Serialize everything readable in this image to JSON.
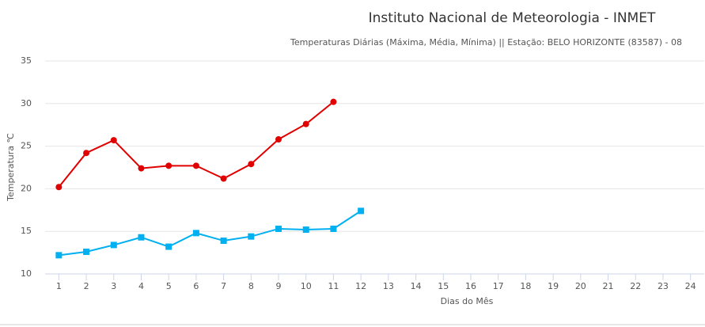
{
  "chart_data": {
    "type": "line",
    "title": "Instituto Nacional de Meteorologia - INMET",
    "subtitle": "Temperaturas Diárias (Máxima, Média, Mínima) || Estação: BELO HORIZONTE (83587) - 08",
    "x_label": "Dias do Mês",
    "y_label": "Temperatura ℃",
    "categories": [
      "1",
      "2",
      "3",
      "4",
      "5",
      "6",
      "7",
      "8",
      "9",
      "10",
      "11",
      "12",
      "13",
      "14",
      "15",
      "16",
      "17",
      "18",
      "19",
      "20",
      "21",
      "22",
      "23",
      "24"
    ],
    "series": [
      {
        "color": "#e00000",
        "marker": "circle",
        "values": [
          20.2,
          24.2,
          25.7,
          22.4,
          22.7,
          22.7,
          21.2,
          22.9,
          25.8,
          27.6,
          30.2,
          null,
          null,
          null,
          null,
          null,
          null,
          null,
          null,
          null,
          null,
          null,
          null,
          null
        ]
      },
      {
        "color": "#00b0f0",
        "marker": "square",
        "values": [
          12.2,
          12.6,
          13.4,
          14.3,
          13.2,
          14.8,
          13.9,
          14.4,
          15.3,
          15.2,
          15.3,
          17.4,
          null,
          null,
          null,
          null,
          null,
          null,
          null,
          null,
          null,
          null,
          null,
          null
        ]
      }
    ],
    "ylim": [
      10,
      35
    ],
    "yticks": [
      10,
      15,
      20,
      25,
      30,
      35
    ],
    "grid": true
  }
}
